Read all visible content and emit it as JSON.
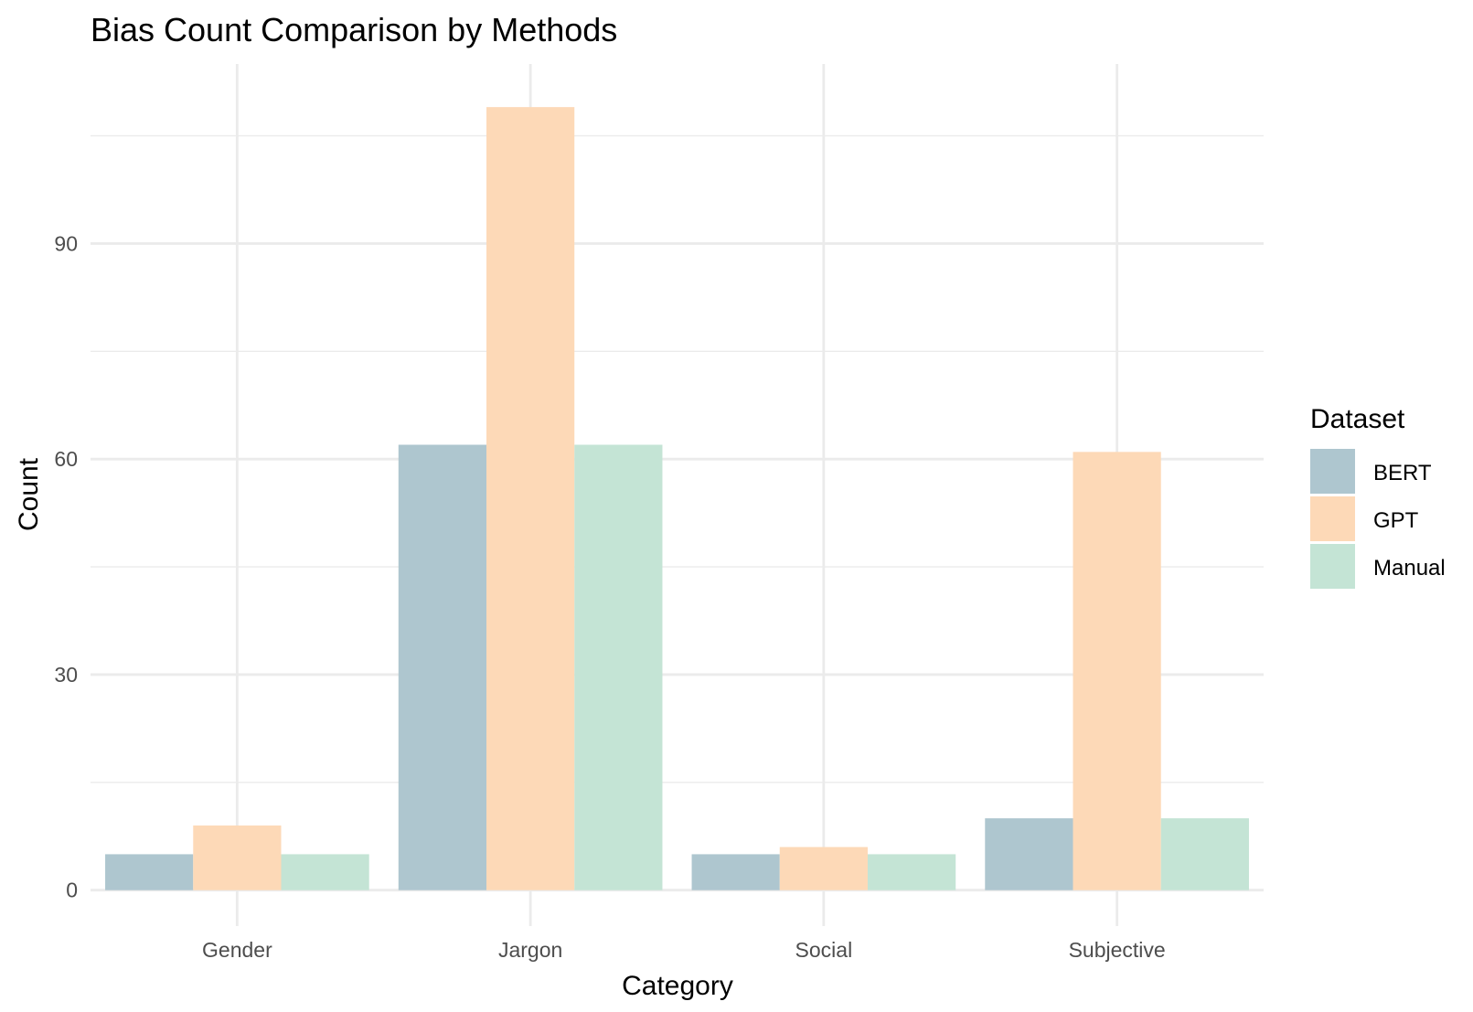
{
  "chart_data": {
    "type": "bar",
    "title": "Bias Count Comparison by Methods",
    "xlabel": "Category",
    "ylabel": "Count",
    "categories": [
      "Gender",
      "Jargon",
      "Social",
      "Subjective"
    ],
    "series": [
      {
        "name": "BERT",
        "color": "#aec6cf",
        "values": [
          5,
          62,
          5,
          10
        ]
      },
      {
        "name": "GPT",
        "color": "#fdd9b7",
        "values": [
          9,
          109,
          6,
          61
        ]
      },
      {
        "name": "Manual",
        "color": "#c4e4d5",
        "values": [
          5,
          62,
          5,
          10
        ]
      }
    ],
    "ylim": [
      -5,
      115
    ],
    "yticks": [
      0,
      30,
      60,
      90
    ],
    "yticks_minor": [
      15,
      45,
      75,
      105
    ],
    "y_tick_labels": [
      "0",
      "30",
      "60",
      "90"
    ],
    "grid": true,
    "legend": {
      "title": "Dataset",
      "position": "right"
    }
  }
}
